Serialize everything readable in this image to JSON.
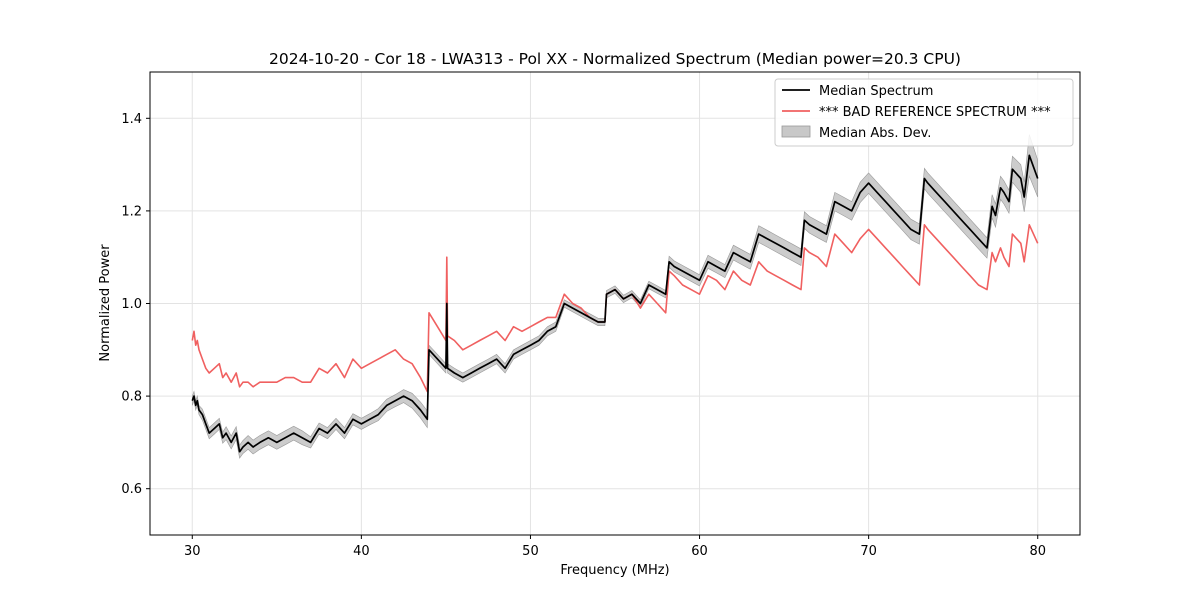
{
  "chart_data": {
    "type": "line",
    "title": "2024-10-20 - Cor 18 - LWA313 - Pol XX - Normalized Spectrum (Median power=20.3 CPU)",
    "xlabel": "Frequency (MHz)",
    "ylabel": "Normalized Power",
    "xlim": [
      27.5,
      82.5
    ],
    "ylim": [
      0.5,
      1.5
    ],
    "xticks": [
      30,
      40,
      50,
      60,
      70,
      80
    ],
    "yticks": [
      0.6,
      0.8,
      1.0,
      1.2,
      1.4
    ],
    "xtick_labels": [
      "30",
      "40",
      "50",
      "60",
      "70",
      "80"
    ],
    "ytick_labels": [
      "0.6",
      "0.8",
      "1.0",
      "1.2",
      "1.4"
    ],
    "grid": true,
    "legend_position": "upper right",
    "legend": {
      "median": "Median Spectrum",
      "reference": "*** BAD REFERENCE SPECTRUM ***",
      "mad": "Median Abs. Dev."
    },
    "colors": {
      "median": "#000000",
      "reference": "#f06060",
      "mad": "#bfbfbf"
    },
    "series": [
      {
        "name": "Median Spectrum",
        "x": [
          30.0,
          30.1,
          30.2,
          30.3,
          30.4,
          30.6,
          30.8,
          31.0,
          31.3,
          31.6,
          31.8,
          32.0,
          32.3,
          32.6,
          32.8,
          33.0,
          33.3,
          33.6,
          34.0,
          34.5,
          35.0,
          35.5,
          36.0,
          36.5,
          37.0,
          37.5,
          38.0,
          38.5,
          39.0,
          39.5,
          40.0,
          40.5,
          41.0,
          41.5,
          42.0,
          42.5,
          43.0,
          43.5,
          43.9,
          44.0,
          44.5,
          45.0,
          45.05,
          45.1,
          45.5,
          46.0,
          46.5,
          47.0,
          47.5,
          48.0,
          48.5,
          49.0,
          49.5,
          50.0,
          50.5,
          51.0,
          51.5,
          52.0,
          52.5,
          53.0,
          53.5,
          54.0,
          54.4,
          54.5,
          55.0,
          55.5,
          56.0,
          56.5,
          57.0,
          57.5,
          58.0,
          58.2,
          58.5,
          59.0,
          59.5,
          60.0,
          60.5,
          61.0,
          61.5,
          62.0,
          62.5,
          63.0,
          63.5,
          64.0,
          64.5,
          65.0,
          65.5,
          66.0,
          66.2,
          66.5,
          67.0,
          67.5,
          68.0,
          68.5,
          69.0,
          69.5,
          70.0,
          70.5,
          71.0,
          71.5,
          72.0,
          72.5,
          73.0,
          73.3,
          73.5,
          74.0,
          74.5,
          75.0,
          75.5,
          76.0,
          76.5,
          77.0,
          77.3,
          77.5,
          77.8,
          78.0,
          78.3,
          78.5,
          79.0,
          79.2,
          79.5,
          80.0
        ],
        "values": [
          0.79,
          0.8,
          0.78,
          0.79,
          0.77,
          0.76,
          0.74,
          0.72,
          0.73,
          0.74,
          0.71,
          0.72,
          0.7,
          0.72,
          0.68,
          0.69,
          0.7,
          0.69,
          0.7,
          0.71,
          0.7,
          0.71,
          0.72,
          0.71,
          0.7,
          0.73,
          0.72,
          0.74,
          0.72,
          0.75,
          0.74,
          0.75,
          0.76,
          0.78,
          0.79,
          0.8,
          0.79,
          0.77,
          0.75,
          0.9,
          0.88,
          0.86,
          1.0,
          0.86,
          0.85,
          0.84,
          0.85,
          0.86,
          0.87,
          0.88,
          0.86,
          0.89,
          0.9,
          0.91,
          0.92,
          0.94,
          0.95,
          1.0,
          0.99,
          0.98,
          0.97,
          0.96,
          0.96,
          1.02,
          1.03,
          1.01,
          1.02,
          1.0,
          1.04,
          1.03,
          1.02,
          1.09,
          1.08,
          1.07,
          1.06,
          1.05,
          1.09,
          1.08,
          1.07,
          1.11,
          1.1,
          1.09,
          1.15,
          1.14,
          1.13,
          1.12,
          1.11,
          1.1,
          1.18,
          1.17,
          1.16,
          1.15,
          1.22,
          1.21,
          1.2,
          1.24,
          1.26,
          1.24,
          1.22,
          1.2,
          1.18,
          1.16,
          1.15,
          1.27,
          1.26,
          1.24,
          1.22,
          1.2,
          1.18,
          1.16,
          1.14,
          1.12,
          1.21,
          1.19,
          1.25,
          1.24,
          1.22,
          1.29,
          1.27,
          1.23,
          1.32,
          1.27
        ]
      },
      {
        "name": "*** BAD REFERENCE SPECTRUM ***",
        "x": [
          30.0,
          30.1,
          30.2,
          30.3,
          30.4,
          30.6,
          30.8,
          31.0,
          31.3,
          31.6,
          31.8,
          32.0,
          32.3,
          32.6,
          32.8,
          33.0,
          33.3,
          33.6,
          34.0,
          34.5,
          35.0,
          35.5,
          36.0,
          36.5,
          37.0,
          37.5,
          38.0,
          38.5,
          39.0,
          39.5,
          40.0,
          40.5,
          41.0,
          41.5,
          42.0,
          42.5,
          43.0,
          43.5,
          43.9,
          44.0,
          44.5,
          45.0,
          45.05,
          45.1,
          45.5,
          46.0,
          46.5,
          47.0,
          47.5,
          48.0,
          48.5,
          49.0,
          49.5,
          50.0,
          50.5,
          51.0,
          51.5,
          52.0,
          52.5,
          53.0,
          53.5,
          54.0,
          54.4,
          54.5,
          55.0,
          55.5,
          56.0,
          56.5,
          57.0,
          57.5,
          58.0,
          58.2,
          58.5,
          59.0,
          59.5,
          60.0,
          60.5,
          61.0,
          61.5,
          62.0,
          62.5,
          63.0,
          63.5,
          64.0,
          64.5,
          65.0,
          65.5,
          66.0,
          66.2,
          66.5,
          67.0,
          67.5,
          68.0,
          68.5,
          69.0,
          69.5,
          70.0,
          70.5,
          71.0,
          71.5,
          72.0,
          72.5,
          73.0,
          73.3,
          73.5,
          74.0,
          74.5,
          75.0,
          75.5,
          76.0,
          76.5,
          77.0,
          77.3,
          77.5,
          77.8,
          78.0,
          78.3,
          78.5,
          79.0,
          79.2,
          79.5,
          80.0
        ],
        "values": [
          0.92,
          0.94,
          0.91,
          0.92,
          0.9,
          0.88,
          0.86,
          0.85,
          0.86,
          0.87,
          0.84,
          0.85,
          0.83,
          0.85,
          0.82,
          0.83,
          0.83,
          0.82,
          0.83,
          0.83,
          0.83,
          0.84,
          0.84,
          0.83,
          0.83,
          0.86,
          0.85,
          0.87,
          0.84,
          0.88,
          0.86,
          0.87,
          0.88,
          0.89,
          0.9,
          0.88,
          0.87,
          0.84,
          0.81,
          0.98,
          0.95,
          0.92,
          1.1,
          0.93,
          0.92,
          0.9,
          0.91,
          0.92,
          0.93,
          0.94,
          0.92,
          0.95,
          0.94,
          0.95,
          0.96,
          0.97,
          0.97,
          1.02,
          1.0,
          0.99,
          0.97,
          0.96,
          0.96,
          1.02,
          1.03,
          1.01,
          1.02,
          0.99,
          1.02,
          1.0,
          0.98,
          1.07,
          1.06,
          1.04,
          1.03,
          1.02,
          1.06,
          1.05,
          1.03,
          1.07,
          1.05,
          1.04,
          1.09,
          1.07,
          1.06,
          1.05,
          1.04,
          1.03,
          1.12,
          1.11,
          1.1,
          1.08,
          1.15,
          1.13,
          1.11,
          1.14,
          1.16,
          1.14,
          1.12,
          1.1,
          1.08,
          1.06,
          1.04,
          1.17,
          1.16,
          1.14,
          1.12,
          1.1,
          1.08,
          1.06,
          1.04,
          1.03,
          1.11,
          1.09,
          1.12,
          1.1,
          1.08,
          1.15,
          1.13,
          1.09,
          1.17,
          1.13
        ]
      },
      {
        "name": "Median Abs. Dev.",
        "x": [
          30.0,
          30.1,
          30.2,
          30.3,
          30.4,
          30.6,
          30.8,
          31.0,
          31.3,
          31.6,
          31.8,
          32.0,
          32.3,
          32.6,
          32.8,
          33.0,
          33.3,
          33.6,
          34.0,
          34.5,
          35.0,
          35.5,
          36.0,
          36.5,
          37.0,
          37.5,
          38.0,
          38.5,
          39.0,
          39.5,
          40.0,
          40.5,
          41.0,
          41.5,
          42.0,
          42.5,
          43.0,
          43.5,
          43.9,
          44.0,
          44.5,
          45.0,
          45.05,
          45.1,
          45.5,
          46.0,
          46.5,
          47.0,
          47.5,
          48.0,
          48.5,
          49.0,
          49.5,
          50.0,
          50.5,
          51.0,
          51.5,
          52.0,
          52.5,
          53.0,
          53.5,
          54.0,
          54.4,
          54.5,
          55.0,
          55.5,
          56.0,
          56.5,
          57.0,
          57.5,
          58.0,
          58.2,
          58.5,
          59.0,
          59.5,
          60.0,
          60.5,
          61.0,
          61.5,
          62.0,
          62.5,
          63.0,
          63.5,
          64.0,
          64.5,
          65.0,
          65.5,
          66.0,
          66.2,
          66.5,
          67.0,
          67.5,
          68.0,
          68.5,
          69.0,
          69.5,
          70.0,
          70.5,
          71.0,
          71.5,
          72.0,
          72.5,
          73.0,
          73.3,
          73.5,
          74.0,
          74.5,
          75.0,
          75.5,
          76.0,
          76.5,
          77.0,
          77.3,
          77.5,
          77.8,
          78.0,
          78.3,
          78.5,
          79.0,
          79.2,
          79.5,
          80.0
        ],
        "band": [
          0.01,
          0.01,
          0.01,
          0.01,
          0.01,
          0.012,
          0.012,
          0.012,
          0.012,
          0.012,
          0.012,
          0.014,
          0.014,
          0.014,
          0.014,
          0.014,
          0.015,
          0.015,
          0.015,
          0.015,
          0.015,
          0.015,
          0.015,
          0.015,
          0.012,
          0.012,
          0.012,
          0.012,
          0.012,
          0.012,
          0.012,
          0.012,
          0.013,
          0.013,
          0.013,
          0.014,
          0.016,
          0.017,
          0.018,
          0.01,
          0.01,
          0.01,
          0.01,
          0.01,
          0.01,
          0.01,
          0.01,
          0.01,
          0.01,
          0.01,
          0.01,
          0.01,
          0.01,
          0.01,
          0.01,
          0.01,
          0.01,
          0.008,
          0.008,
          0.008,
          0.008,
          0.008,
          0.008,
          0.008,
          0.008,
          0.008,
          0.008,
          0.008,
          0.008,
          0.008,
          0.008,
          0.012,
          0.012,
          0.012,
          0.012,
          0.012,
          0.014,
          0.014,
          0.014,
          0.016,
          0.016,
          0.016,
          0.018,
          0.018,
          0.018,
          0.018,
          0.018,
          0.018,
          0.018,
          0.018,
          0.018,
          0.018,
          0.02,
          0.02,
          0.02,
          0.022,
          0.022,
          0.022,
          0.022,
          0.022,
          0.022,
          0.022,
          0.022,
          0.022,
          0.022,
          0.022,
          0.022,
          0.022,
          0.022,
          0.022,
          0.022,
          0.022,
          0.025,
          0.025,
          0.025,
          0.025,
          0.025,
          0.028,
          0.03,
          0.032,
          0.045,
          0.04
        ]
      }
    ]
  }
}
